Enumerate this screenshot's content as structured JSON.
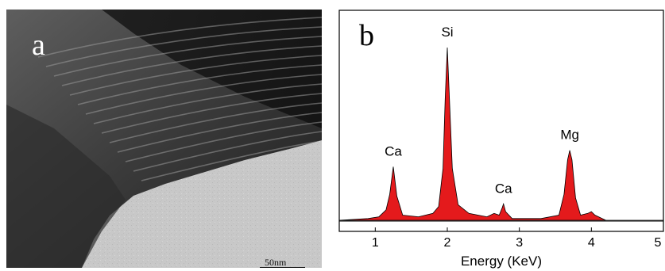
{
  "panel_a": {
    "label": "a",
    "scale_bar_label": "50nm"
  },
  "panel_b": {
    "label": "b"
  },
  "chart_data": {
    "type": "area",
    "title": "",
    "xlabel": "Energy (KeV)",
    "ylabel": "",
    "xlim": [
      0.5,
      5.0
    ],
    "x_ticks": [
      "1",
      "2",
      "3",
      "4",
      "5"
    ],
    "fill_color": "#e41a1c",
    "peaks": [
      {
        "element": "Ca",
        "energy": 1.25,
        "relative_intensity": 0.31
      },
      {
        "element": "Si",
        "energy": 2.0,
        "relative_intensity": 1.0
      },
      {
        "element": "Ca",
        "energy": 2.78,
        "relative_intensity": 0.095
      },
      {
        "element": "Mg",
        "energy": 3.7,
        "relative_intensity": 0.405
      }
    ],
    "series": [
      {
        "values": [
          [
            0.5,
            0.0
          ],
          [
            0.9,
            0.01
          ],
          [
            1.05,
            0.02
          ],
          [
            1.15,
            0.06
          ],
          [
            1.2,
            0.15
          ],
          [
            1.25,
            0.31
          ],
          [
            1.3,
            0.14
          ],
          [
            1.38,
            0.03
          ],
          [
            1.6,
            0.02
          ],
          [
            1.8,
            0.04
          ],
          [
            1.88,
            0.08
          ],
          [
            1.94,
            0.3
          ],
          [
            1.97,
            0.7
          ],
          [
            2.0,
            1.0
          ],
          [
            2.03,
            0.7
          ],
          [
            2.07,
            0.3
          ],
          [
            2.15,
            0.09
          ],
          [
            2.3,
            0.04
          ],
          [
            2.55,
            0.02
          ],
          [
            2.65,
            0.04
          ],
          [
            2.72,
            0.03
          ],
          [
            2.76,
            0.07
          ],
          [
            2.78,
            0.095
          ],
          [
            2.81,
            0.05
          ],
          [
            2.9,
            0.01
          ],
          [
            3.3,
            0.01
          ],
          [
            3.55,
            0.03
          ],
          [
            3.62,
            0.15
          ],
          [
            3.67,
            0.35
          ],
          [
            3.7,
            0.405
          ],
          [
            3.73,
            0.35
          ],
          [
            3.78,
            0.13
          ],
          [
            3.85,
            0.03
          ],
          [
            3.95,
            0.04
          ],
          [
            4.0,
            0.05
          ],
          [
            4.05,
            0.03
          ],
          [
            4.2,
            0.0
          ],
          [
            5.0,
            0.0
          ]
        ]
      }
    ]
  }
}
